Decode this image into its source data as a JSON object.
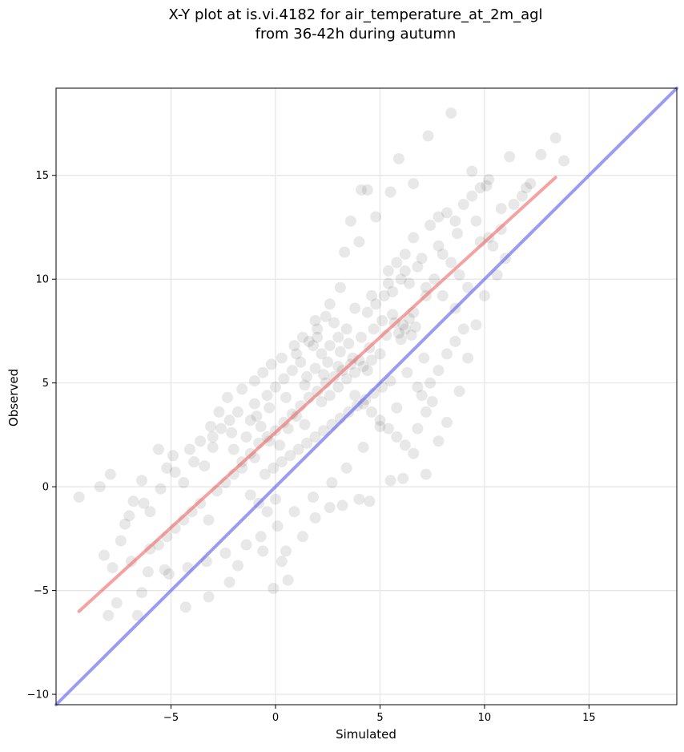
{
  "chart_data": {
    "type": "scatter",
    "title": "X-Y plot at is.vi.4182 for air_temperature_at_2m_agl",
    "subtitle": "from 36-42h during autumn",
    "xlabel": "Simulated",
    "ylabel": "Observed",
    "xlim": [
      -10.5,
      19.2
    ],
    "ylim": [
      -10.5,
      19.2
    ],
    "xticks": [
      -5,
      0,
      5,
      10,
      15
    ],
    "yticks": [
      -10,
      -5,
      0,
      5,
      10,
      15
    ],
    "xtick_labels": [
      "−5",
      "0",
      "5",
      "10",
      "15"
    ],
    "ytick_labels": [
      "−10",
      "−5",
      "0",
      "5",
      "10",
      "15"
    ],
    "grid": true,
    "marker_color": "#000000",
    "marker_alpha": 0.09,
    "series": [
      {
        "points": [
          [
            -9.4,
            -0.5
          ],
          [
            -8.4,
            0.0
          ],
          [
            -7.9,
            0.6
          ],
          [
            -7.2,
            -1.8
          ],
          [
            -6.8,
            -0.7
          ],
          [
            -6.4,
            0.3
          ],
          [
            -6.0,
            -1.2
          ],
          [
            -5.6,
            1.8
          ],
          [
            -5.2,
            0.9
          ],
          [
            -4.9,
            1.5
          ],
          [
            -4.4,
            0.2
          ],
          [
            -4.1,
            1.8
          ],
          [
            -3.6,
            2.2
          ],
          [
            -3.1,
            2.9
          ],
          [
            -2.7,
            3.6
          ],
          [
            -2.3,
            4.3
          ],
          [
            -1.6,
            4.7
          ],
          [
            -1.0,
            5.1
          ],
          [
            -0.6,
            5.5
          ],
          [
            -0.2,
            5.9
          ],
          [
            0.3,
            6.2
          ],
          [
            0.9,
            6.8
          ],
          [
            1.3,
            7.2
          ],
          [
            1.9,
            8.0
          ],
          [
            2.6,
            8.8
          ],
          [
            3.1,
            9.6
          ],
          [
            3.3,
            11.3
          ],
          [
            3.6,
            12.8
          ],
          [
            4.0,
            11.8
          ],
          [
            4.1,
            14.3
          ],
          [
            4.4,
            14.3
          ],
          [
            4.8,
            13.0
          ],
          [
            5.5,
            14.2
          ],
          [
            5.9,
            15.8
          ],
          [
            6.6,
            14.6
          ],
          [
            7.3,
            16.9
          ],
          [
            8.4,
            18.0
          ],
          [
            9.4,
            15.2
          ],
          [
            10.1,
            14.5
          ],
          [
            11.2,
            15.9
          ],
          [
            12.7,
            16.0
          ],
          [
            13.4,
            16.8
          ],
          [
            13.8,
            15.7
          ],
          [
            12.0,
            14.4
          ],
          [
            10.8,
            13.4
          ],
          [
            9.6,
            12.8
          ],
          [
            8.7,
            12.2
          ],
          [
            7.8,
            11.6
          ],
          [
            7.0,
            11.0
          ],
          [
            6.2,
            10.4
          ],
          [
            5.4,
            9.8
          ],
          [
            4.6,
            9.2
          ],
          [
            3.8,
            8.6
          ],
          [
            2.8,
            7.9
          ],
          [
            2.0,
            7.2
          ],
          [
            1.0,
            6.4
          ],
          [
            -8.2,
            -3.3
          ],
          [
            -7.8,
            -3.9
          ],
          [
            -7.6,
            -5.6
          ],
          [
            -8.0,
            -6.2
          ],
          [
            -6.6,
            -6.2
          ],
          [
            -6.4,
            -5.1
          ],
          [
            -5.1,
            -4.2
          ],
          [
            -4.3,
            -5.8
          ],
          [
            -3.2,
            -5.3
          ],
          [
            -2.2,
            -4.6
          ],
          [
            -1.8,
            -3.8
          ],
          [
            -0.6,
            -3.1
          ],
          [
            -0.1,
            -4.9
          ],
          [
            0.6,
            -4.5
          ],
          [
            0.3,
            -3.6
          ],
          [
            0.5,
            -3.1
          ],
          [
            1.3,
            -2.4
          ],
          [
            1.9,
            -1.5
          ],
          [
            2.6,
            -1.0
          ],
          [
            3.2,
            -0.9
          ],
          [
            4.0,
            -0.6
          ],
          [
            4.5,
            -0.7
          ],
          [
            5.5,
            0.3
          ],
          [
            6.1,
            0.4
          ],
          [
            7.2,
            0.6
          ],
          [
            7.8,
            2.2
          ],
          [
            8.2,
            3.1
          ],
          [
            8.8,
            4.6
          ],
          [
            9.2,
            6.2
          ],
          [
            9.6,
            7.8
          ],
          [
            10.0,
            9.2
          ],
          [
            10.6,
            10.2
          ],
          [
            6.3,
            5.5
          ],
          [
            7.1,
            6.2
          ],
          [
            7.5,
            4.1
          ],
          [
            6.8,
            4.8
          ],
          [
            5.8,
            3.8
          ],
          [
            5.0,
            2.9
          ],
          [
            4.2,
            1.9
          ],
          [
            3.4,
            0.9
          ],
          [
            2.7,
            0.2
          ],
          [
            1.8,
            -0.5
          ],
          [
            0.9,
            -1.2
          ],
          [
            0.1,
            -1.9
          ],
          [
            -0.7,
            -2.4
          ],
          [
            -1.4,
            -2.8
          ],
          [
            -2.4,
            -3.2
          ],
          [
            -3.3,
            -3.6
          ],
          [
            -4.2,
            -3.9
          ],
          [
            -5.3,
            -4.0
          ],
          [
            -6.1,
            -4.1
          ],
          [
            -6.9,
            -3.6
          ],
          [
            -7.4,
            -2.6
          ],
          [
            -7.0,
            -1.4
          ],
          [
            -6.3,
            -0.8
          ],
          [
            -5.5,
            -0.1
          ],
          [
            -4.8,
            0.7
          ],
          [
            -3.9,
            1.2
          ],
          [
            -3.0,
            1.9
          ],
          [
            -2.1,
            2.6
          ],
          [
            -1.2,
            3.2
          ],
          [
            -0.3,
            3.8
          ],
          [
            0.5,
            4.3
          ],
          [
            1.4,
            4.9
          ],
          [
            2.3,
            5.4
          ],
          [
            3.0,
            5.8
          ],
          [
            3.7,
            6.2
          ],
          [
            4.5,
            6.7
          ],
          [
            5.3,
            7.3
          ],
          [
            6.1,
            7.8
          ],
          [
            6.6,
            8.4
          ],
          [
            7.2,
            9.2
          ],
          [
            5.9,
            7.4
          ],
          [
            6.2,
            7.6
          ],
          [
            6.5,
            7.3
          ],
          [
            5.7,
            7.9
          ],
          [
            6.4,
            8.1
          ],
          [
            6.0,
            7.1
          ],
          [
            5.6,
            8.3
          ],
          [
            6.7,
            7.7
          ],
          [
            2.4,
            5.0
          ],
          [
            2.8,
            5.3
          ],
          [
            3.2,
            5.6
          ],
          [
            3.6,
            5.9
          ],
          [
            4.0,
            6.1
          ],
          [
            4.4,
            5.6
          ],
          [
            2.0,
            4.6
          ],
          [
            1.6,
            4.3
          ],
          [
            1.2,
            3.9
          ],
          [
            0.8,
            3.5
          ],
          [
            0.4,
            3.1
          ],
          [
            0.0,
            2.7
          ],
          [
            -0.4,
            2.4
          ],
          [
            -0.8,
            2.1
          ],
          [
            -1.2,
            1.6
          ],
          [
            -1.6,
            1.2
          ],
          [
            2.2,
            4.1
          ],
          [
            2.6,
            4.4
          ],
          [
            3.0,
            4.8
          ],
          [
            3.4,
            5.2
          ],
          [
            3.8,
            5.5
          ],
          [
            4.2,
            5.8
          ],
          [
            4.6,
            6.1
          ],
          [
            5.0,
            6.4
          ],
          [
            1.5,
            5.3
          ],
          [
            1.9,
            5.7
          ],
          [
            2.5,
            6.0
          ],
          [
            3.1,
            6.5
          ],
          [
            3.5,
            6.9
          ],
          [
            4.1,
            7.2
          ],
          [
            4.7,
            7.6
          ],
          [
            5.1,
            8.0
          ],
          [
            -0.5,
            0.6
          ],
          [
            -0.1,
            0.9
          ],
          [
            0.3,
            1.2
          ],
          [
            0.7,
            1.5
          ],
          [
            1.1,
            1.8
          ],
          [
            1.5,
            2.1
          ],
          [
            1.9,
            2.4
          ],
          [
            2.3,
            2.7
          ],
          [
            2.7,
            3.0
          ],
          [
            3.1,
            3.3
          ],
          [
            3.5,
            3.6
          ],
          [
            3.9,
            3.9
          ],
          [
            4.3,
            4.2
          ],
          [
            4.7,
            4.5
          ],
          [
            5.1,
            4.8
          ],
          [
            5.5,
            5.1
          ],
          [
            -1.0,
            1.4
          ],
          [
            -0.7,
            2.9
          ],
          [
            -0.9,
            3.4
          ],
          [
            -0.3,
            2.2
          ],
          [
            0.2,
            2.0
          ],
          [
            0.6,
            2.8
          ],
          [
            1.0,
            3.4
          ],
          [
            1.4,
            3.0
          ],
          [
            5.4,
            10.4
          ],
          [
            5.8,
            10.8
          ],
          [
            6.2,
            11.2
          ],
          [
            6.0,
            10.0
          ],
          [
            5.6,
            9.4
          ],
          [
            6.4,
            9.8
          ],
          [
            6.8,
            10.6
          ],
          [
            6.6,
            12.0
          ],
          [
            7.4,
            12.6
          ],
          [
            7.8,
            13.0
          ],
          [
            8.2,
            13.2
          ],
          [
            8.6,
            12.8
          ],
          [
            9.0,
            13.6
          ],
          [
            9.4,
            14.0
          ],
          [
            9.8,
            14.4
          ],
          [
            10.2,
            14.8
          ],
          [
            8.0,
            11.2
          ],
          [
            8.4,
            10.8
          ],
          [
            8.8,
            10.2
          ],
          [
            9.2,
            9.6
          ],
          [
            7.6,
            10.0
          ],
          [
            7.2,
            9.6
          ],
          [
            8.0,
            9.2
          ],
          [
            8.6,
            8.6
          ],
          [
            4.4,
            8.4
          ],
          [
            4.8,
            8.8
          ],
          [
            5.2,
            9.2
          ],
          [
            3.4,
            7.6
          ],
          [
            3.0,
            7.2
          ],
          [
            2.6,
            6.8
          ],
          [
            2.2,
            6.4
          ],
          [
            1.8,
            6.8
          ],
          [
            -2.8,
            -0.2
          ],
          [
            -2.4,
            0.2
          ],
          [
            -2.0,
            0.6
          ],
          [
            -1.6,
            0.9
          ],
          [
            -1.2,
            -0.4
          ],
          [
            -0.8,
            -0.8
          ],
          [
            -0.4,
            -1.2
          ],
          [
            0.0,
            -0.6
          ],
          [
            -3.6,
            -0.8
          ],
          [
            -4.0,
            -1.2
          ],
          [
            -4.4,
            -1.6
          ],
          [
            -4.8,
            -2.0
          ],
          [
            -5.2,
            -2.4
          ],
          [
            -5.6,
            -2.8
          ],
          [
            -6.0,
            -3.0
          ],
          [
            -3.2,
            -1.6
          ],
          [
            -1.8,
            3.6
          ],
          [
            -2.2,
            3.2
          ],
          [
            -2.6,
            2.8
          ],
          [
            -3.0,
            2.4
          ],
          [
            -3.4,
            1.0
          ],
          [
            -2.0,
            1.8
          ],
          [
            -1.4,
            2.4
          ],
          [
            -1.0,
            4.0
          ],
          [
            0.8,
            5.6
          ],
          [
            1.2,
            6.0
          ],
          [
            0.4,
            5.2
          ],
          [
            0.0,
            4.8
          ],
          [
            -0.4,
            4.4
          ],
          [
            1.6,
            7.0
          ],
          [
            2.0,
            7.6
          ],
          [
            2.4,
            8.2
          ],
          [
            3.8,
            4.4
          ],
          [
            4.2,
            4.0
          ],
          [
            4.6,
            3.6
          ],
          [
            5.0,
            3.2
          ],
          [
            5.4,
            2.8
          ],
          [
            5.8,
            2.4
          ],
          [
            6.2,
            2.0
          ],
          [
            6.6,
            1.6
          ],
          [
            7.0,
            4.4
          ],
          [
            7.4,
            5.0
          ],
          [
            7.8,
            5.6
          ],
          [
            8.2,
            6.4
          ],
          [
            8.6,
            7.0
          ],
          [
            9.0,
            7.6
          ],
          [
            6.8,
            2.8
          ],
          [
            7.2,
            3.6
          ],
          [
            11.0,
            11.0
          ],
          [
            10.4,
            11.6
          ],
          [
            11.4,
            13.6
          ],
          [
            12.2,
            14.6
          ],
          [
            10.8,
            12.4
          ],
          [
            11.8,
            14.0
          ],
          [
            9.8,
            11.8
          ],
          [
            10.2,
            12.0
          ]
        ]
      }
    ],
    "reference_lines": [
      {
        "name": "fit",
        "color": "#f07070",
        "x": [
          -9.4,
          13.4
        ],
        "y": [
          -6.0,
          14.9
        ]
      },
      {
        "name": "one-to-one",
        "color": "#6666ee",
        "x": [
          -10.5,
          19.2
        ],
        "y": [
          -10.5,
          19.2
        ]
      }
    ]
  }
}
